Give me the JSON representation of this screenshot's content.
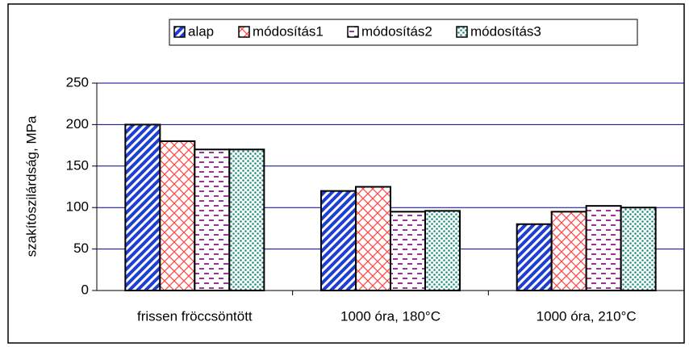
{
  "chart_data": {
    "type": "bar",
    "y_label": "szakítószilárdság, MPa",
    "categories": [
      "frissen fröccsöntött",
      "1000 óra, 180°C",
      "1000 óra, 210°C"
    ],
    "series": [
      {
        "name": "alap",
        "color": "#1f3fd0",
        "values": [
          200,
          120,
          80
        ]
      },
      {
        "name": "módosítás1",
        "color": "#ff4a4a",
        "values": [
          180,
          125,
          95
        ]
      },
      {
        "name": "módosítás2",
        "color": "#993399",
        "values": [
          170,
          95,
          102
        ]
      },
      {
        "name": "módosítás3",
        "color": "#1f8f7f",
        "values": [
          170,
          96,
          100
        ]
      }
    ],
    "ylim": [
      0,
      250
    ],
    "yticks": [
      0,
      50,
      100,
      150,
      200,
      250
    ],
    "grid": true
  }
}
